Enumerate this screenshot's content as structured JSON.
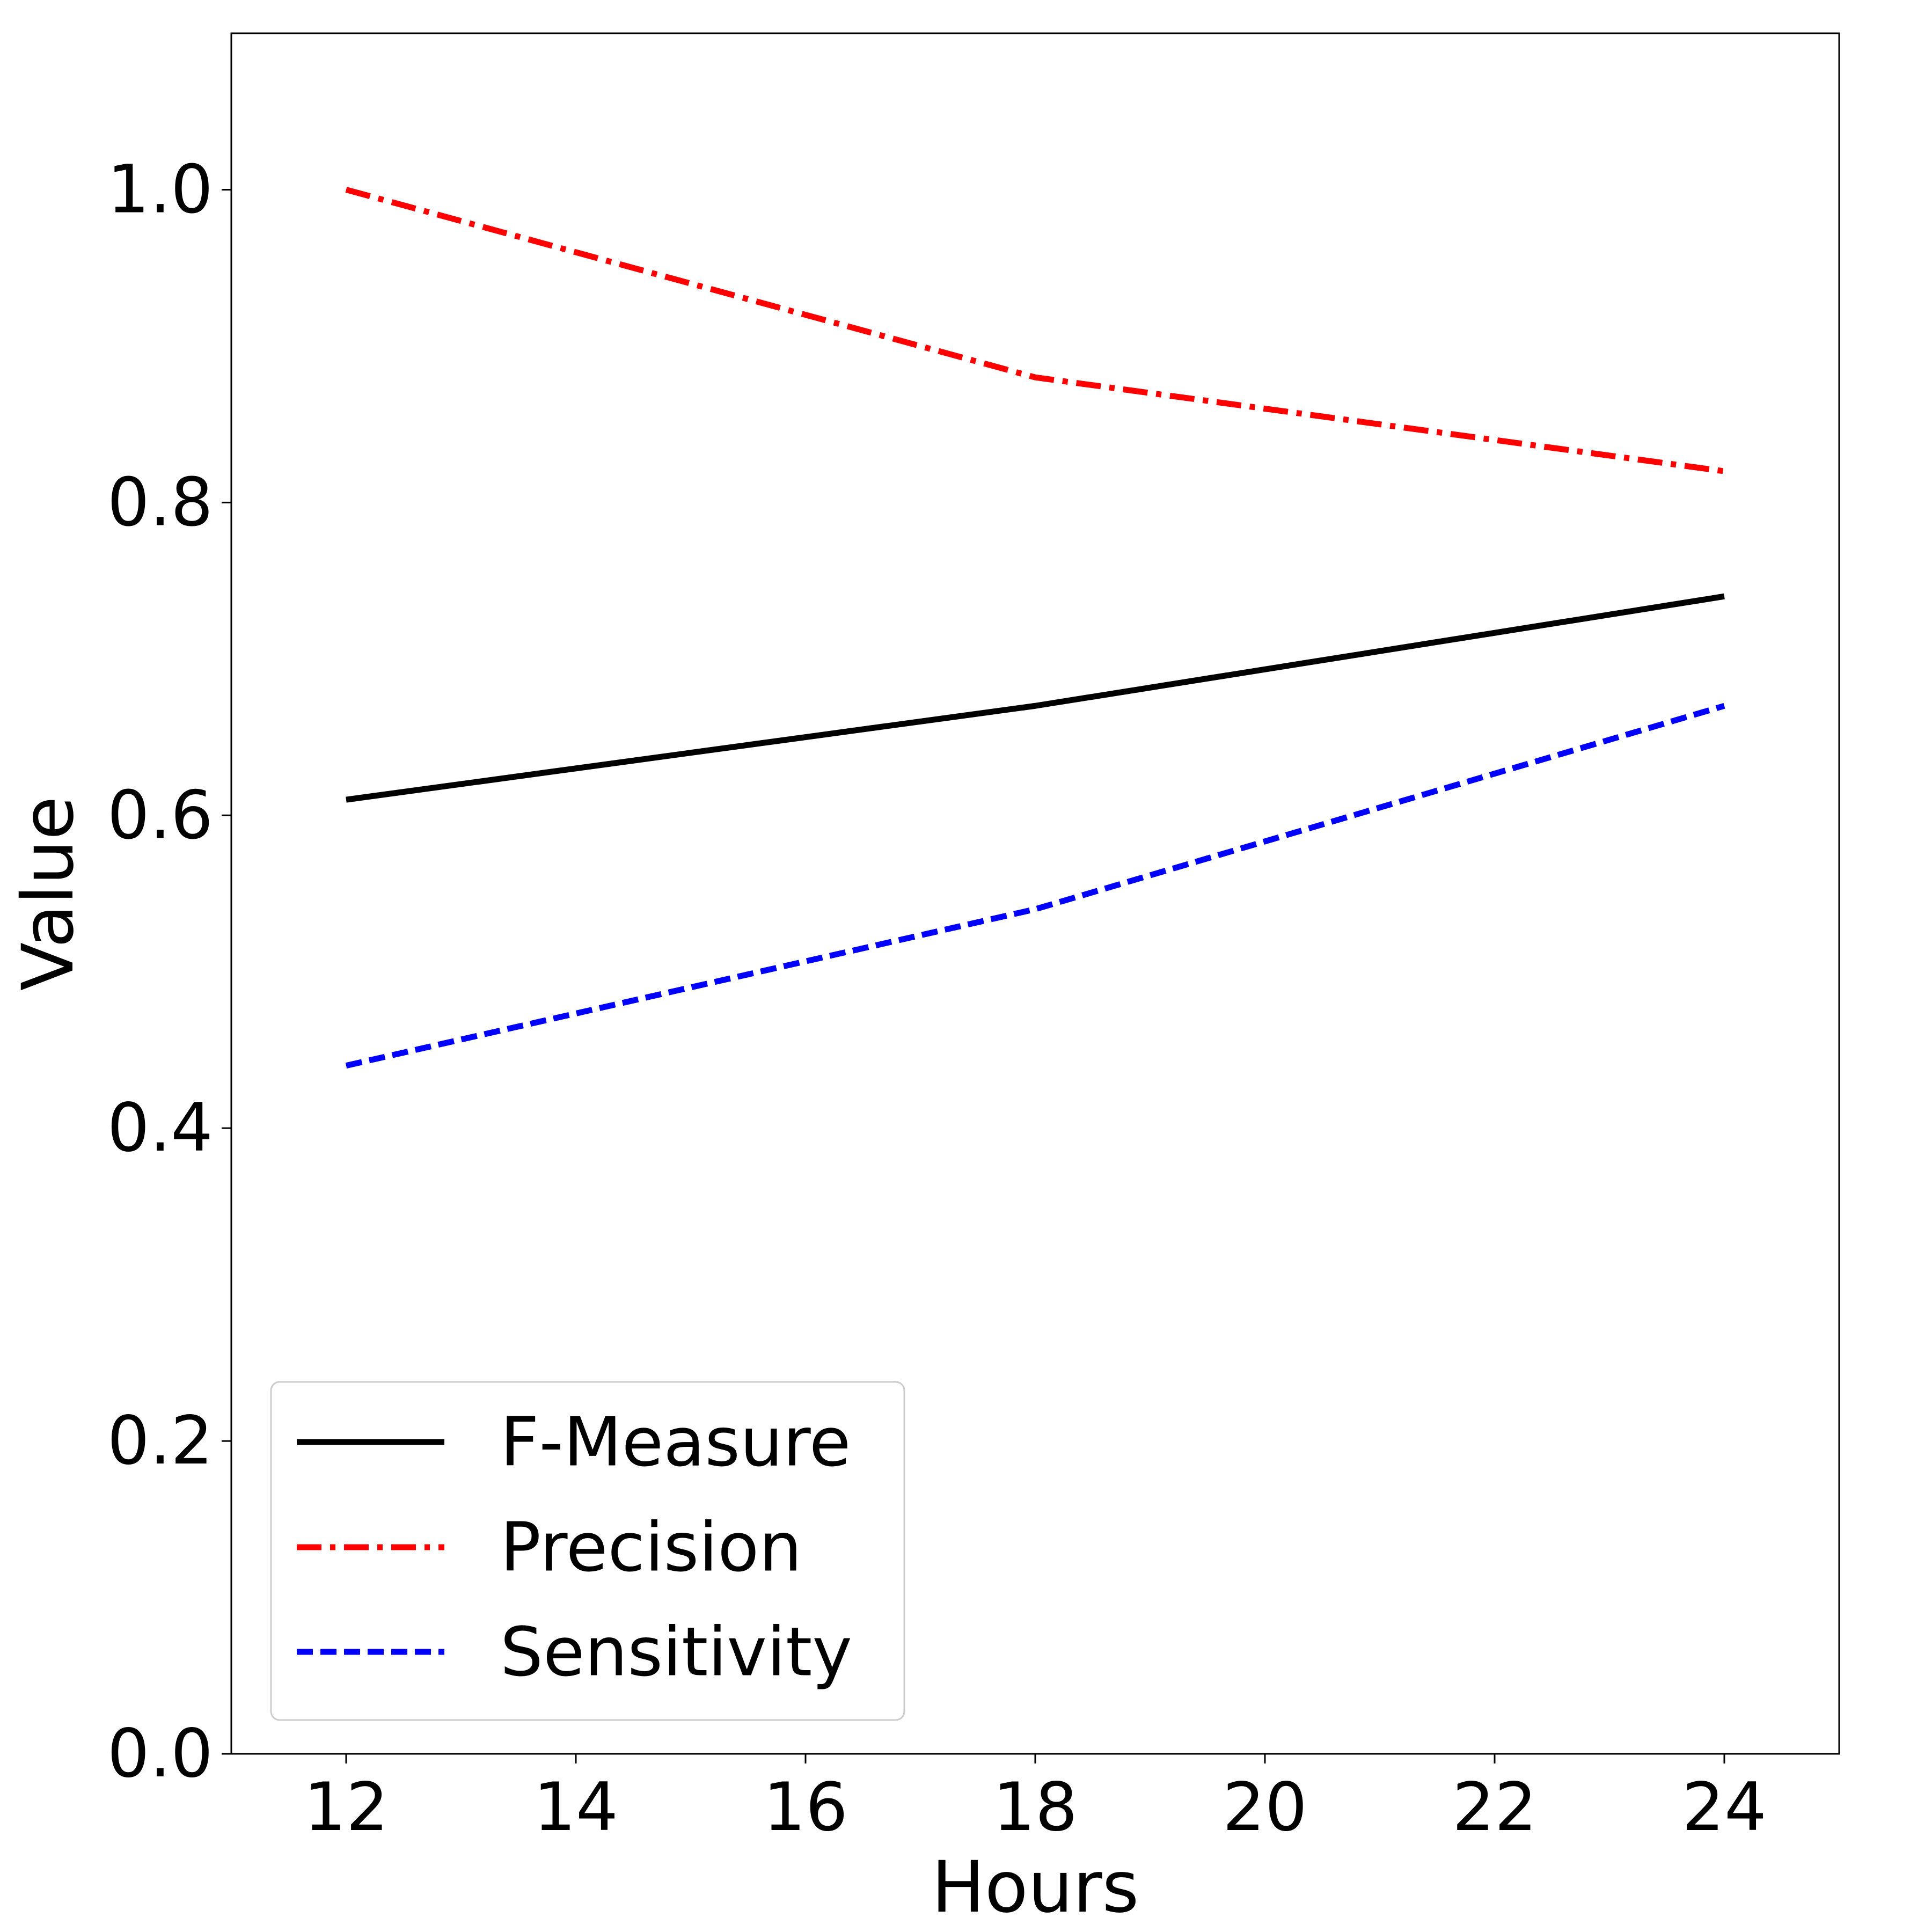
{
  "chart_data": {
    "type": "line",
    "title": "",
    "xlabel": "Hours",
    "ylabel": "Value",
    "xlim": [
      11,
      25
    ],
    "ylim": [
      0,
      1.1
    ],
    "x_ticks": [
      12,
      14,
      16,
      18,
      20,
      22,
      24
    ],
    "x_tick_labels": [
      "12",
      "14",
      "16",
      "18",
      "20",
      "22",
      "24"
    ],
    "y_ticks": [
      0.0,
      0.2,
      0.4,
      0.6,
      0.8,
      1.0
    ],
    "y_tick_labels": [
      "0.0",
      "0.2",
      "0.4",
      "0.6",
      "0.8",
      "1.0"
    ],
    "grid": false,
    "legend_position": "lower-left",
    "x": [
      12,
      18,
      24
    ],
    "series": [
      {
        "name": "F-Measure",
        "values": [
          0.61,
          0.67,
          0.74
        ],
        "color": "#000000",
        "line_style": "solid"
      },
      {
        "name": "Precision",
        "values": [
          1.0,
          0.88,
          0.82
        ],
        "color": "#ff0000",
        "line_style": "dashdot"
      },
      {
        "name": "Sensitivity",
        "values": [
          0.44,
          0.54,
          0.67
        ],
        "color": "#0000ff",
        "line_style": "dashed"
      }
    ]
  }
}
